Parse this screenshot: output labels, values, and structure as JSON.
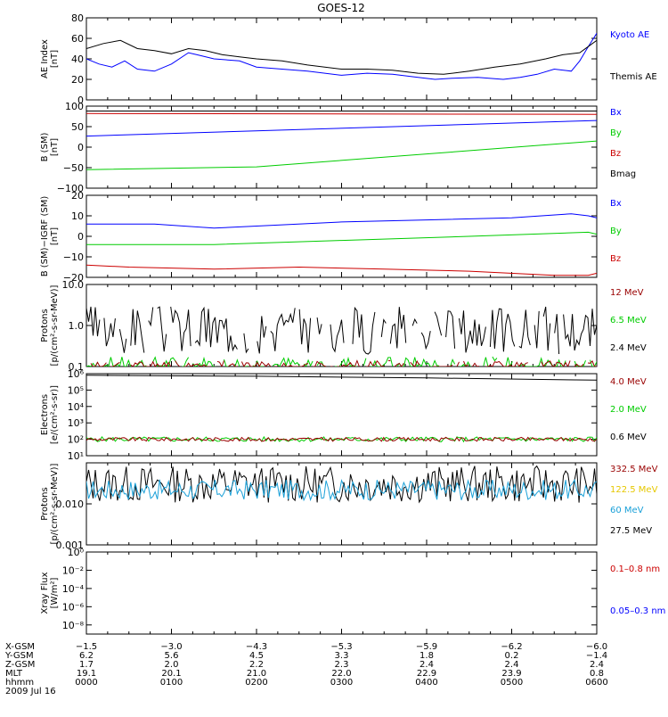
{
  "title": "GOES-12",
  "colors": {
    "black": "#000000",
    "blue": "#0000ff",
    "green": "#00cc00",
    "red": "#cc0000",
    "darkred": "#990000",
    "yellow": "#e6c800",
    "cyan": "#1aa0d8"
  },
  "chart_data": [
    {
      "type": "line",
      "ylabel": [
        "AE Index",
        "[nT]"
      ],
      "ylim": [
        0,
        80
      ],
      "yticks": [
        0,
        20,
        40,
        60,
        80
      ],
      "ytick_labels": [
        "0",
        "20",
        "40",
        "60",
        "80"
      ],
      "log": false,
      "legend": [
        {
          "label": "Kyoto AE",
          "color": "#0000ff"
        },
        {
          "label": "Themis AE",
          "color": "#000000"
        }
      ],
      "series": [
        {
          "name": "Kyoto AE",
          "color": "#0000ff",
          "x": [
            0,
            0.15,
            0.3,
            0.45,
            0.6,
            0.8,
            1.0,
            1.2,
            1.3,
            1.5,
            1.8,
            2.0,
            2.3,
            2.6,
            3.0,
            3.3,
            3.6,
            3.9,
            4.1,
            4.3,
            4.6,
            4.9,
            5.1,
            5.3,
            5.5,
            5.7,
            5.8,
            5.9,
            6.0
          ],
          "values": [
            40,
            35,
            32,
            38,
            30,
            28,
            35,
            46,
            44,
            40,
            38,
            32,
            30,
            28,
            24,
            26,
            25,
            22,
            20,
            21,
            22,
            20,
            22,
            25,
            30,
            28,
            38,
            52,
            65
          ]
        },
        {
          "name": "Themis AE",
          "color": "#000000",
          "x": [
            0,
            0.2,
            0.4,
            0.6,
            0.8,
            1.0,
            1.2,
            1.4,
            1.6,
            1.8,
            2.0,
            2.3,
            2.6,
            3.0,
            3.3,
            3.6,
            3.9,
            4.2,
            4.5,
            4.8,
            5.1,
            5.4,
            5.6,
            5.8,
            5.9,
            6.0
          ],
          "values": [
            50,
            55,
            58,
            50,
            48,
            45,
            50,
            48,
            44,
            42,
            40,
            38,
            34,
            30,
            30,
            29,
            26,
            25,
            28,
            32,
            35,
            40,
            44,
            46,
            52,
            58
          ]
        }
      ]
    },
    {
      "type": "line",
      "ylabel": [
        "B (SM)",
        "[nT]"
      ],
      "ylim": [
        -100,
        100
      ],
      "yticks": [
        -100,
        -50,
        0,
        50,
        100
      ],
      "ytick_labels": [
        "−100",
        "−50",
        "0",
        "50",
        "100"
      ],
      "log": false,
      "legend": [
        {
          "label": "Bx",
          "color": "#0000ff"
        },
        {
          "label": "By",
          "color": "#00cc00"
        },
        {
          "label": "Bz",
          "color": "#cc0000"
        },
        {
          "label": "Bmag",
          "color": "#000000"
        }
      ],
      "series": [
        {
          "name": "Bx",
          "color": "#0000ff",
          "x": [
            0,
            6
          ],
          "values": [
            27,
            65
          ]
        },
        {
          "name": "By",
          "color": "#00cc00",
          "x": [
            0,
            2,
            6
          ],
          "values": [
            -55,
            -48,
            15
          ]
        },
        {
          "name": "Bz",
          "color": "#cc0000",
          "x": [
            0,
            6
          ],
          "values": [
            82,
            80
          ]
        },
        {
          "name": "Bmag",
          "color": "#000000",
          "x": [
            0,
            6
          ],
          "values": [
            88,
            88
          ]
        }
      ]
    },
    {
      "type": "line",
      "ylabel": [
        "B (SM)−IGRF (SM)",
        "[nT]"
      ],
      "ylim": [
        -20,
        20
      ],
      "yticks": [
        -20,
        -10,
        0,
        10,
        20
      ],
      "ytick_labels": [
        "−20",
        "−10",
        "0",
        "10",
        "20"
      ],
      "log": false,
      "legend": [
        {
          "label": "Bx",
          "color": "#0000ff"
        },
        {
          "label": "By",
          "color": "#00cc00"
        },
        {
          "label": "Bz",
          "color": "#cc0000"
        }
      ],
      "series": [
        {
          "name": "Bx",
          "color": "#0000ff",
          "x": [
            0,
            0.8,
            1.5,
            2.0,
            3.0,
            4.0,
            5.0,
            5.7,
            5.9,
            6.0
          ],
          "values": [
            6,
            6,
            4,
            5,
            7,
            8,
            9,
            11,
            10,
            9
          ]
        },
        {
          "name": "By",
          "color": "#00cc00",
          "x": [
            0,
            1.5,
            3.0,
            4.5,
            5.9,
            6.0
          ],
          "values": [
            -4,
            -4,
            -2,
            0,
            2,
            1
          ]
        },
        {
          "name": "Bz",
          "color": "#cc0000",
          "x": [
            0,
            0.5,
            1.5,
            2.5,
            3.5,
            4.5,
            5.5,
            5.9,
            6.0
          ],
          "values": [
            -14,
            -15,
            -16,
            -15,
            -16,
            -17,
            -19,
            -19,
            -18
          ]
        }
      ]
    },
    {
      "type": "line",
      "ylabel": [
        "Protons",
        "[p/(cm²-s-sr-MeV)]"
      ],
      "ylim": [
        0.1,
        10
      ],
      "yticks": [
        0.1,
        1,
        10
      ],
      "ytick_labels": [
        "0.1",
        "1.0",
        "10.0"
      ],
      "log": true,
      "legend": [
        {
          "label": "12 MeV",
          "color": "#990000"
        },
        {
          "label": "6.5 MeV",
          "color": "#00cc00"
        },
        {
          "label": "2.4 MeV",
          "color": "#000000"
        }
      ],
      "series": [
        {
          "name": "2.4 MeV",
          "color": "#000000",
          "noise": {
            "base": 0.8,
            "spread": 0.6,
            "seed": 3,
            "gaps": true
          }
        },
        {
          "name": "6.5 MeV",
          "color": "#00cc00",
          "noise": {
            "base": 0.11,
            "spread": 0.2,
            "seed": 7,
            "gaps": true
          }
        },
        {
          "name": "12 MeV",
          "color": "#990000",
          "noise": {
            "base": 0.1,
            "spread": 0.15,
            "seed": 11,
            "gaps": true
          }
        }
      ]
    },
    {
      "type": "line",
      "ylabel": [
        "Electrons",
        "[e/(cm²-s-sr)]"
      ],
      "ylim": [
        10,
        1000000
      ],
      "yticks": [
        10,
        100,
        1000,
        10000,
        100000,
        1000000
      ],
      "ytick_labels": [
        "10¹",
        "10²",
        "10³",
        "10⁴",
        "10⁵",
        "10⁶"
      ],
      "log": true,
      "legend": [
        {
          "label": "4.0 MeV",
          "color": "#990000"
        },
        {
          "label": "2.0 MeV",
          "color": "#00cc00"
        },
        {
          "label": "0.6 MeV",
          "color": "#000000"
        }
      ],
      "series": [
        {
          "name": "0.6 MeV",
          "color": "#000000",
          "x": [
            0,
            2,
            4,
            6
          ],
          "values": [
            800000,
            700000,
            550000,
            400000
          ]
        },
        {
          "name": "2.0 MeV",
          "color": "#00cc00",
          "noise": {
            "base": 100,
            "spread": 0.15,
            "seed": 5
          }
        },
        {
          "name": "4.0 MeV",
          "color": "#990000",
          "noise": {
            "base": 100,
            "spread": 0.12,
            "seed": 9
          }
        }
      ]
    },
    {
      "type": "line",
      "ylabel": [
        "Protons",
        "[p/(cm²-s-sr-MeV)]"
      ],
      "ylim": [
        0.001,
        0.1
      ],
      "yticks": [
        0.001,
        0.01,
        0.1
      ],
      "ytick_labels": [
        "0.001",
        "0.010",
        ""
      ],
      "log": true,
      "legend": [
        {
          "label": "332.5 MeV",
          "color": "#990000"
        },
        {
          "label": "122.5 MeV",
          "color": "#e6c800"
        },
        {
          "label": "60 MeV",
          "color": "#1aa0d8"
        },
        {
          "label": "27.5 MeV",
          "color": "#000000"
        }
      ],
      "series": [
        {
          "name": "27.5 MeV",
          "color": "#000000",
          "noise": {
            "base": 0.03,
            "spread": 0.45,
            "seed": 13
          }
        },
        {
          "name": "60 MeV",
          "color": "#1aa0d8",
          "noise": {
            "base": 0.022,
            "spread": 0.25,
            "seed": 17
          }
        }
      ]
    },
    {
      "type": "line",
      "ylabel": [
        "Xray Flux",
        "[W/m²]"
      ],
      "ylim": [
        1e-09,
        1
      ],
      "yticks": [
        1e-08,
        1e-06,
        0.0001,
        0.01,
        1
      ],
      "ytick_labels": [
        "10⁻⁸",
        "10⁻⁶",
        "10⁻⁴",
        "10⁻²",
        "10⁰"
      ],
      "log": true,
      "legend": [
        {
          "label": "0.1–0.8 nm",
          "color": "#cc0000"
        },
        {
          "label": "0.05–0.3 nm",
          "color": "#0000ff"
        }
      ],
      "series": []
    }
  ],
  "xaxis": {
    "ticks_hours": [
      0,
      1,
      2,
      3,
      4,
      5,
      6
    ],
    "rows": [
      {
        "label": "X-GSM",
        "values": [
          "−1.5",
          "−3.0",
          "−4.3",
          "−5.3",
          "−5.9",
          "−6.2",
          "−6.0"
        ]
      },
      {
        "label": "Y-GSM",
        "values": [
          "6.2",
          "5.6",
          "4.5",
          "3.3",
          "1.8",
          "0.2",
          "−1.4"
        ]
      },
      {
        "label": "Z-GSM",
        "values": [
          "1.7",
          "2.0",
          "2.2",
          "2.3",
          "2.4",
          "2.4",
          "2.4"
        ]
      },
      {
        "label": "MLT",
        "values": [
          "19.1",
          "20.1",
          "21.0",
          "22.0",
          "22.9",
          "23.9",
          "0.8"
        ]
      },
      {
        "label": "hhmm",
        "values": [
          "0000",
          "0100",
          "0200",
          "0300",
          "0400",
          "0500",
          "0600"
        ]
      }
    ],
    "date": "2009 Jul 16"
  }
}
